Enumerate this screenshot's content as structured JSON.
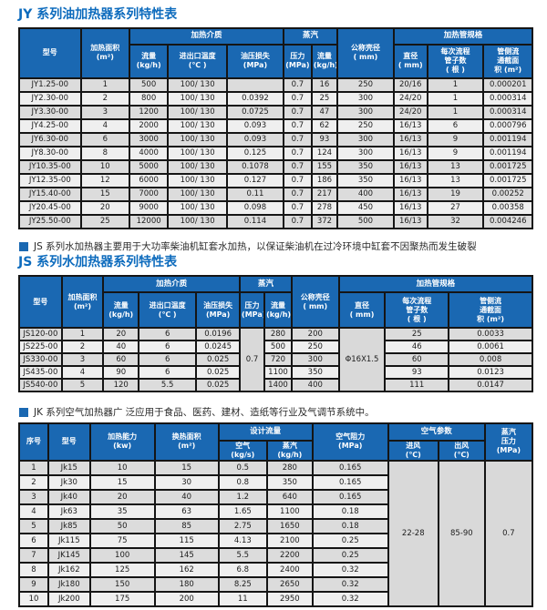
{
  "colors": {
    "header_bg": "#1a68b2",
    "title_text": "#0d6bbd",
    "border": "#151515",
    "row_odd": "#dcdcdc",
    "row_even": "#efefef"
  },
  "jy": {
    "title": "JY 系列油加热器系列特性表",
    "headers": {
      "model": "型号",
      "area": "加热面积\n(m²)",
      "medium_group": "加热介质",
      "flow": "流量\n(kg/h)",
      "temp": "进出口温度\n(℃ )",
      "oil_loss": "油压损失\n(MPa)",
      "steam_group": "蒸汽",
      "pressure": "压力\n(MPa)",
      "steam_flow": "流量\n(kg/h)",
      "shell": "公称壳径\n( mm)",
      "tube_group": "加热管规格",
      "diameter": "直径\n( mm)",
      "tube_count": "每次流程\n管子数\n( 根 )",
      "cross_section": "管侧流\n通截面\n积 (m²)"
    },
    "rows": [
      [
        "JY1.25-00",
        "1",
        "500",
        "100/ 130",
        "",
        "0.7",
        "16",
        "250",
        "20/16",
        "1",
        "0.000201"
      ],
      [
        "JY2.30-00",
        "2",
        "800",
        "100/ 130",
        "0.0392",
        "0.7",
        "25",
        "300",
        "24/20",
        "1",
        "0.000314"
      ],
      [
        "JY3.30-00",
        "3",
        "1200",
        "100/ 130",
        "0.0725",
        "0.7",
        "47",
        "300",
        "24/20",
        "1",
        "0.000314"
      ],
      [
        "JY4.25-00",
        "4",
        "2000",
        "100/ 130",
        "0.093",
        "0.7",
        "62",
        "250",
        "16/13",
        "6",
        "0.000796"
      ],
      [
        "JY6.30-00",
        "6",
        "3000",
        "100/ 130",
        "0.093",
        "0.7",
        "93",
        "300",
        "16/13",
        "9",
        "0.001194"
      ],
      [
        "JY8.30-00",
        "8",
        "4000",
        "100/ 130",
        "0.125",
        "0.7",
        "124",
        "300",
        "16/13",
        "9",
        "0.001194"
      ],
      [
        "JY10.35-00",
        "10",
        "5000",
        "100/ 130",
        "0.1078",
        "0.7",
        "155",
        "350",
        "16/13",
        "13",
        "0.001725"
      ],
      [
        "JY12.35-00",
        "12",
        "6000",
        "100/ 130",
        "0.127",
        "0.7",
        "186",
        "350",
        "16/13",
        "13",
        "0.001725"
      ],
      [
        "JY15.40-00",
        "15",
        "7000",
        "100/ 130",
        "0.11",
        "0.7",
        "217",
        "400",
        "16/13",
        "19",
        "0.00252"
      ],
      [
        "JY20.45-00",
        "20",
        "9000",
        "100/ 130",
        "0.098",
        "0.7",
        "278",
        "450",
        "16/13",
        "27",
        "0.00358"
      ],
      [
        "JY25.50-00",
        "25",
        "12000",
        "100/ 130",
        "0.114",
        "0.7",
        "372",
        "500",
        "16/13",
        "32",
        "0.004246"
      ]
    ]
  },
  "js": {
    "note": "JS 系列水加热器主要用于大功率柴油机缸套水加热，以保证柴油机在过冷环境中缸套不因聚热而发生破裂",
    "title": "JS 系列水加热器系列特性表",
    "headers": {
      "model": "型号",
      "area": "加热面积\n(m²)",
      "medium_group": "加热介质",
      "flow": "流量\n(kg/h)",
      "temp": "进出口温度\n(℃ )",
      "oil_loss": "油压损失\n(MPa)",
      "steam_group": "蒸汽",
      "pressure": "压力\n(MPa)",
      "steam_flow": "流量\n(kg/h)",
      "shell": "公称壳径\n( mm)",
      "tube_group": "加热管规格",
      "diameter": "直径\n( mm)",
      "tube_count": "每次流程\n管子数\n( 根 )",
      "cross_section": "管侧流\n通截面\n积 (m²)"
    },
    "rows": [
      [
        "JS120-00",
        "1",
        "20",
        "6",
        "0.0196",
        "280",
        "200",
        "25",
        "0.0033"
      ],
      [
        "JS225-00",
        "2",
        "40",
        "6",
        "0.0245",
        "500",
        "250",
        "46",
        "0.0061"
      ],
      [
        "JS330-00",
        "3",
        "60",
        "6",
        "0.025",
        "720",
        "300",
        "60",
        "0.008"
      ],
      [
        "JS435-00",
        "4",
        "90",
        "6",
        "0.025",
        "1100",
        "350",
        "93",
        "0.0123"
      ],
      [
        "JS540-00",
        "5",
        "120",
        "5.5",
        "0.025",
        "1400",
        "400",
        "111",
        "0.0147"
      ]
    ],
    "merged": {
      "pressure": "0.7",
      "diameter": "Φ16X1.5"
    }
  },
  "jk": {
    "note": "JK 系列空气加热器广 泛应用于食品、医药、建材、造纸等行业及气调节系统中。",
    "headers": {
      "index": "序号",
      "model": "型号",
      "capacity": "加热能力\n(kw)",
      "exchange_area": "换热面积\n(m²)",
      "design_flow_group": "设计流量",
      "air": "空气\n(kg/s)",
      "steam": "蒸汽\n(kg/h)",
      "air_resistance": "空气阻力\n(MPa)",
      "air_params_group": "空气参数",
      "inlet": "进风\n(℃)",
      "outlet": "出风\n(℃)",
      "steam_pressure": "蒸汽\n压力\n(MPa)"
    },
    "rows": [
      [
        "1",
        "Jk15",
        "10",
        "15",
        "0.5",
        "280",
        "0.165"
      ],
      [
        "2",
        "Jk30",
        "15",
        "30",
        "0.8",
        "350",
        "0.165"
      ],
      [
        "3",
        "Jk40",
        "20",
        "40",
        "1.2",
        "640",
        "0.165"
      ],
      [
        "4",
        "Jk63",
        "35",
        "63",
        "1.65",
        "1100",
        "0.18"
      ],
      [
        "5",
        "Jk85",
        "50",
        "85",
        "2.75",
        "1650",
        "0.18"
      ],
      [
        "6",
        "Jk115",
        "75",
        "115",
        "4.13",
        "2100",
        "0.25"
      ],
      [
        "7",
        "JK145",
        "100",
        "145",
        "5.5",
        "2200",
        "0.25"
      ],
      [
        "8",
        "Jk162",
        "125",
        "162",
        "6.8",
        "2400",
        "0.32"
      ],
      [
        "9",
        "Jk180",
        "150",
        "180",
        "8.25",
        "2650",
        "0.32"
      ],
      [
        "10",
        "Jk200",
        "175",
        "200",
        "11",
        "2950",
        "0.32"
      ]
    ],
    "merged": {
      "inlet": "22-28",
      "outlet": "85-90",
      "steam_pressure": "0.7"
    }
  }
}
